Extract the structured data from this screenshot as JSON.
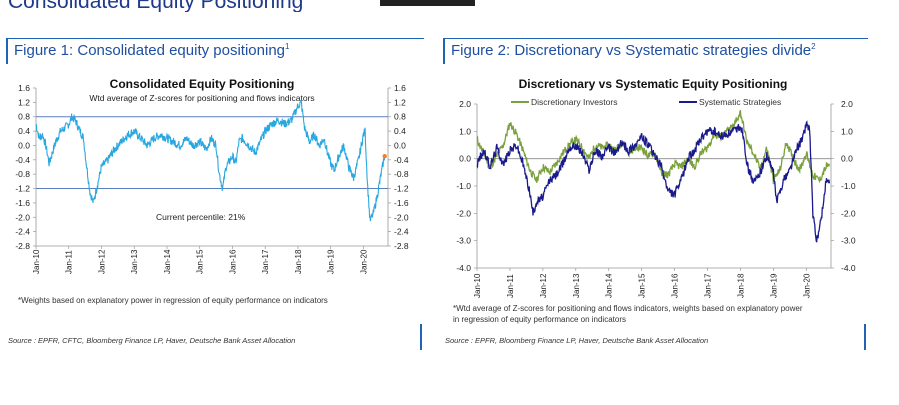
{
  "page": {
    "heading": "Consolidated Equity Positioning"
  },
  "figures": [
    {
      "title": "Figure 1: Consolidated equity positioning",
      "title_sup": "1",
      "footnote": "*Weights based on explanatory power in regression of equity performance on indicators",
      "source": "Source : EPFR, CFTC, Bloomberg Finance LP, Haver, Deutsche Bank Asset Allocation"
    },
    {
      "title": "Figure 2: Discretionary vs Systematic strategies divide",
      "title_sup": "2",
      "footnote_line1": "*Wtd average of Z-scores for positioning and flows indicators, weights based on explanatory power",
      "footnote_line2": "in regression of equity performance on indicators",
      "source": "Source : EPFR, Bloomberg Finance LP, Haver, Deutsche Bank Asset Allocation"
    }
  ],
  "chart_data": [
    {
      "type": "line",
      "title": "Consolidated Equity Positioning",
      "subtitle": "Wtd average of Z-scores for positioning and flows indicators",
      "annotation": "Current percentile: 21%",
      "x_ticks": [
        "Jan-10",
        "Jan-11",
        "Jan-12",
        "Jan-13",
        "Jan-14",
        "Jan-15",
        "Jan-16",
        "Jan-17",
        "Jan-18",
        "Jan-19",
        "Jan-20"
      ],
      "xlim": [
        2010.0,
        2020.75
      ],
      "ylim": [
        -2.8,
        1.6
      ],
      "y_ticks": [
        "1.6",
        "1.2",
        "0.8",
        "0.4",
        "0.0",
        "-0.4",
        "-0.8",
        "-1.2",
        "-1.6",
        "-2.0",
        "-2.4",
        "-2.8"
      ],
      "reference_lines": [
        0.8,
        -1.2
      ],
      "colors": {
        "series": "#29a8e0",
        "reference": "#5b7fc0",
        "current_point": "#f08030"
      },
      "series": [
        {
          "name": "Consolidated equity positioning",
          "x": [
            2010.0,
            2010.1,
            2010.2,
            2010.3,
            2010.4,
            2010.5,
            2010.6,
            2010.75,
            2010.9,
            2011.0,
            2011.1,
            2011.2,
            2011.3,
            2011.45,
            2011.55,
            2011.65,
            2011.75,
            2011.85,
            2012.0,
            2012.2,
            2012.4,
            2012.6,
            2012.8,
            2013.0,
            2013.2,
            2013.4,
            2013.6,
            2013.8,
            2014.0,
            2014.2,
            2014.4,
            2014.6,
            2014.8,
            2015.0,
            2015.2,
            2015.35,
            2015.5,
            2015.6,
            2015.7,
            2015.8,
            2016.0,
            2016.1,
            2016.2,
            2016.3,
            2016.5,
            2016.7,
            2016.9,
            2017.0,
            2017.2,
            2017.4,
            2017.6,
            2017.8,
            2017.9,
            2018.0,
            2018.1,
            2018.2,
            2018.35,
            2018.5,
            2018.65,
            2018.8,
            2018.9,
            2019.0,
            2019.1,
            2019.25,
            2019.4,
            2019.55,
            2019.7,
            2019.85,
            2020.0,
            2020.05,
            2020.12,
            2020.2,
            2020.3,
            2020.4,
            2020.5,
            2020.6,
            2020.65
          ],
          "values": [
            0.6,
            0.2,
            0.3,
            0.0,
            -0.5,
            -0.2,
            0.1,
            0.4,
            0.5,
            0.6,
            0.8,
            0.7,
            0.5,
            0.2,
            -0.6,
            -1.3,
            -1.6,
            -1.2,
            -0.6,
            -0.4,
            -0.1,
            0.1,
            0.3,
            0.4,
            0.2,
            0.0,
            0.2,
            0.3,
            0.2,
            0.1,
            0.0,
            0.2,
            0.0,
            0.1,
            -0.1,
            0.2,
            0.0,
            -0.8,
            -1.2,
            -0.6,
            -0.3,
            -0.5,
            0.1,
            0.2,
            0.0,
            -0.2,
            0.2,
            0.4,
            0.6,
            0.7,
            0.6,
            0.7,
            0.9,
            1.1,
            1.2,
            0.5,
            0.1,
            0.3,
            0.0,
            0.2,
            -0.2,
            -0.5,
            -0.7,
            -0.3,
            0.0,
            -0.6,
            -0.9,
            -0.4,
            0.3,
            0.4,
            -1.0,
            -2.1,
            -1.9,
            -1.5,
            -1.0,
            -0.5,
            -0.3
          ]
        }
      ],
      "current_point": {
        "x": 2020.65,
        "y": -0.3
      }
    },
    {
      "type": "line",
      "title": "Discretionary  vs Systematic Equity Positioning",
      "x_ticks": [
        "Jan-10",
        "Jan-11",
        "Jan-12",
        "Jan-13",
        "Jan-14",
        "Jan-15",
        "Jan-16",
        "Jan-17",
        "Jan-18",
        "Jan-19",
        "Jan-20"
      ],
      "xlim": [
        2010.0,
        2020.75
      ],
      "ylim": [
        -4.0,
        2.0
      ],
      "y_ticks": [
        "2.0",
        "1.0",
        "0.0",
        "-1.0",
        "-2.0",
        "-3.0",
        "-4.0"
      ],
      "reference_lines": [
        0.0
      ],
      "colors": {
        "discretionary": "#7aa13b",
        "systematic": "#1a1a8c"
      },
      "series": [
        {
          "name": "Discretionary Investors",
          "x": [
            2010.0,
            2010.2,
            2010.4,
            2010.6,
            2010.8,
            2011.0,
            2011.2,
            2011.4,
            2011.6,
            2011.8,
            2012.0,
            2012.2,
            2012.4,
            2012.6,
            2012.8,
            2013.0,
            2013.2,
            2013.4,
            2013.6,
            2013.8,
            2014.0,
            2014.2,
            2014.4,
            2014.6,
            2014.8,
            2015.0,
            2015.2,
            2015.4,
            2015.6,
            2015.8,
            2016.0,
            2016.2,
            2016.4,
            2016.6,
            2016.8,
            2017.0,
            2017.2,
            2017.4,
            2017.6,
            2017.8,
            2018.0,
            2018.2,
            2018.4,
            2018.6,
            2018.8,
            2019.0,
            2019.2,
            2019.4,
            2019.6,
            2019.8,
            2020.0,
            2020.2,
            2020.4,
            2020.6,
            2020.7
          ],
          "values": [
            0.7,
            0.2,
            -0.3,
            0.1,
            0.5,
            1.3,
            0.9,
            0.3,
            -0.4,
            -0.8,
            -0.3,
            -0.5,
            -0.2,
            0.2,
            0.5,
            0.7,
            0.4,
            0.0,
            0.5,
            0.4,
            0.5,
            0.3,
            0.6,
            0.2,
            0.4,
            0.4,
            0.1,
            0.2,
            -0.5,
            -0.6,
            -0.2,
            -0.3,
            0.0,
            -0.3,
            0.2,
            0.4,
            0.9,
            0.8,
            1.0,
            1.2,
            1.7,
            0.6,
            0.2,
            -0.4,
            0.4,
            -0.8,
            -0.4,
            0.6,
            0.0,
            -0.4,
            0.2,
            -0.6,
            -0.8,
            -0.3,
            -0.2
          ]
        },
        {
          "name": "Systematic Strategies",
          "x": [
            2010.0,
            2010.2,
            2010.4,
            2010.6,
            2010.8,
            2011.0,
            2011.2,
            2011.4,
            2011.6,
            2011.7,
            2011.8,
            2012.0,
            2012.2,
            2012.4,
            2012.6,
            2012.8,
            2013.0,
            2013.2,
            2013.4,
            2013.6,
            2013.8,
            2014.0,
            2014.2,
            2014.4,
            2014.6,
            2014.8,
            2015.0,
            2015.2,
            2015.4,
            2015.6,
            2015.8,
            2016.0,
            2016.2,
            2016.4,
            2016.6,
            2016.8,
            2017.0,
            2017.2,
            2017.4,
            2017.6,
            2017.8,
            2018.0,
            2018.1,
            2018.2,
            2018.4,
            2018.6,
            2018.8,
            2019.0,
            2019.1,
            2019.3,
            2019.5,
            2019.7,
            2019.9,
            2020.0,
            2020.1,
            2020.2,
            2020.3,
            2020.4,
            2020.5,
            2020.6,
            2020.7
          ],
          "values": [
            -0.2,
            0.3,
            -0.3,
            0.4,
            -0.2,
            0.3,
            0.5,
            -0.2,
            -1.2,
            -2.0,
            -1.6,
            -1.4,
            -0.8,
            -0.6,
            -0.2,
            0.4,
            0.5,
            0.2,
            -0.4,
            0.3,
            0.1,
            0.4,
            0.2,
            0.6,
            0.3,
            0.5,
            0.8,
            0.5,
            0.1,
            -0.3,
            -1.2,
            -1.3,
            -0.8,
            0.0,
            0.3,
            0.7,
            1.0,
            1.0,
            0.8,
            0.9,
            1.0,
            1.2,
            0.8,
            -0.2,
            -0.9,
            -0.5,
            0.1,
            -0.5,
            -1.6,
            -0.8,
            -0.4,
            0.3,
            0.8,
            1.3,
            1.1,
            -2.0,
            -3.0,
            -2.6,
            -1.8,
            -0.8,
            -0.9
          ]
        }
      ]
    }
  ]
}
